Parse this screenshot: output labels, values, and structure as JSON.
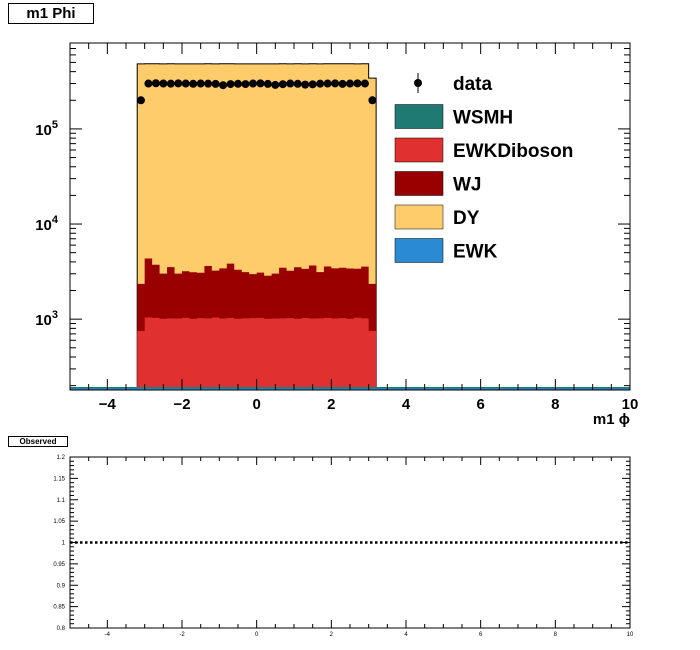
{
  "canvas_title": "m1 Phi",
  "ratio_title": "Observed",
  "colors": {
    "WSMH": "#1f7a73",
    "EWKDiboson": "#e03030",
    "WJ": "#990000",
    "DY": "#fecc6b",
    "EWK": "#2a8ad4",
    "data": "#000000"
  },
  "chart_data": [
    {
      "type": "bar",
      "stacked": true,
      "xlabel": "m1 ϕ",
      "ylabel": "",
      "xlim": [
        -5,
        10
      ],
      "ylim": [
        180,
        800000
      ],
      "yscale": "log",
      "grid": false,
      "legend_position": "top-right",
      "x_ticks": [
        "−4",
        "−2",
        "0",
        "2",
        "4",
        "6",
        "8",
        "10"
      ],
      "y_tick_labels": [
        {
          "base": "10",
          "exp": "3",
          "value": 1000
        },
        {
          "base": "10",
          "exp": "4",
          "value": 10000
        },
        {
          "base": "10",
          "exp": "5",
          "value": 100000
        }
      ],
      "bin_range": [
        -3.2,
        3.2
      ],
      "legend": [
        {
          "name": "data",
          "style": "marker"
        },
        {
          "name": "WSMH",
          "style": "fill"
        },
        {
          "name": "EWKDiboson",
          "style": "fill"
        },
        {
          "name": "WJ",
          "style": "fill"
        },
        {
          "name": "DY",
          "style": "fill"
        },
        {
          "name": "EWK",
          "style": "fill"
        }
      ],
      "series": [
        {
          "name": "EWKDiboson",
          "values": [
            750,
            1040,
            1030,
            1010,
            1020,
            1015,
            1035,
            1010,
            1025,
            1020,
            1040,
            1015,
            1030,
            1010,
            1020,
            1025,
            1030,
            1010,
            1015,
            1020,
            1025,
            1010,
            1030,
            1015,
            1020,
            1030,
            1015,
            1025,
            1010,
            1035,
            1020,
            750
          ]
        },
        {
          "name": "WJ",
          "values": [
            1600,
            3300,
            2700,
            2000,
            2500,
            2000,
            2150,
            2100,
            2050,
            2600,
            2200,
            2400,
            2800,
            2300,
            2100,
            1950,
            2050,
            1850,
            2000,
            2450,
            2200,
            2500,
            2350,
            2650,
            2100,
            2550,
            2400,
            2450,
            2400,
            2350,
            2550,
            1600
          ]
        },
        {
          "name": "DY",
          "values": [
            480000,
            480000,
            480000,
            480000,
            480000,
            480000,
            480000,
            480000,
            480000,
            480000,
            480000,
            480000,
            480000,
            480000,
            480000,
            480000,
            480000,
            480000,
            480000,
            480000,
            480000,
            480000,
            480000,
            480000,
            480000,
            480000,
            480000,
            480000,
            480000,
            480000,
            480000,
            340000
          ]
        },
        {
          "name": "data",
          "values": [
            200000,
            300000,
            302000,
            300000,
            299000,
            301000,
            300000,
            298000,
            300000,
            299000,
            297000,
            288000,
            296000,
            298000,
            296000,
            300000,
            301000,
            297000,
            290000,
            295000,
            300000,
            298000,
            292000,
            294000,
            299000,
            300000,
            301000,
            297000,
            300000,
            301000,
            300000,
            200000
          ]
        }
      ]
    },
    {
      "type": "line",
      "title": "Observed",
      "xlim": [
        -5,
        10
      ],
      "ylim": [
        0.8,
        1.2
      ],
      "x_ticks": [
        "-4",
        "-2",
        "0",
        "2",
        "4",
        "6",
        "8",
        "10"
      ],
      "y_ticks": [
        "0.8",
        "0.85",
        "0.9",
        "0.95",
        "1",
        "1.05",
        "1.1",
        "1.15",
        "1.2"
      ],
      "series": [
        {
          "x": [
            -5,
            10
          ],
          "values": [
            1,
            1
          ],
          "style": "dotted"
        }
      ]
    }
  ]
}
